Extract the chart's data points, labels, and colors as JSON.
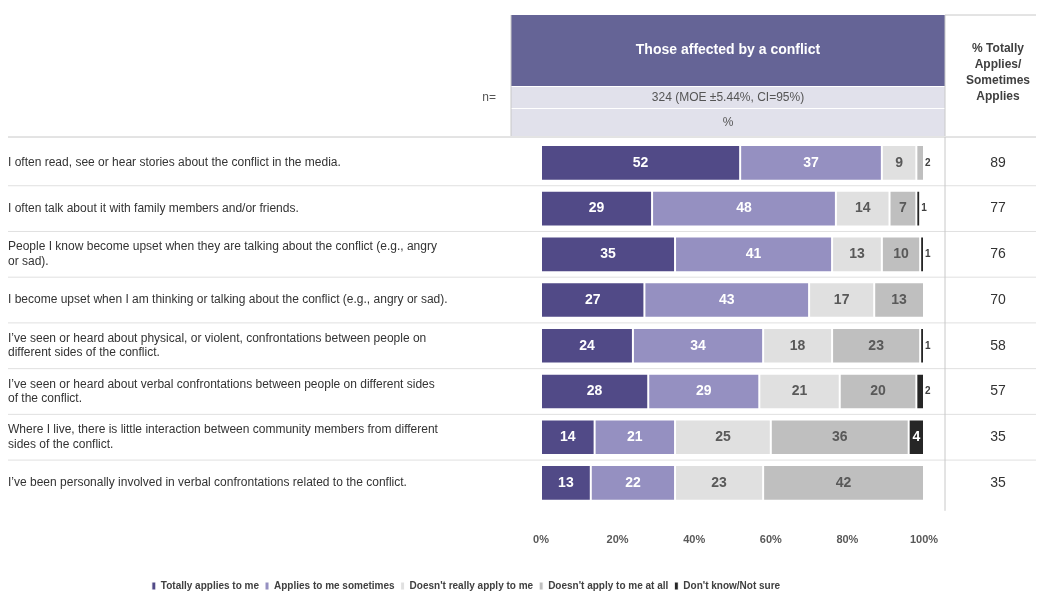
{
  "chart_data": {
    "type": "bar",
    "orientation": "horizontal",
    "stacked": true,
    "title": "Those affected by a conflict",
    "subtitle": "324 (MOE ±5.44%, CI=95%)",
    "categories": [
      "I often read, see or hear stories about the conflict in the media.",
      "I often talk about it with family members and/or friends.",
      "People I know become upset when they are talking about the conflict (e.g., angry or sad).",
      "I become upset when I am thinking or talking about the conflict (e.g., angry or sad).",
      "I’ve seen or heard about physical, or violent, confrontations between people on different sides of the conflict.",
      "I’ve seen or heard about verbal confrontations between people on different sides of the conflict.",
      "Where I live, there is little interaction between community members from different sides of the conflict.",
      "I’ve been personally involved in verbal confrontations related to the conflict."
    ],
    "series": [
      {
        "name": "Totally applies to me",
        "color": "#514a87",
        "values": [
          52,
          29,
          35,
          27,
          24,
          28,
          14,
          13
        ]
      },
      {
        "name": "Applies to me sometimes",
        "color": "#9590c1",
        "values": [
          37,
          48,
          41,
          43,
          34,
          29,
          21,
          22
        ]
      },
      {
        "name": "Doesn't really apply to me",
        "color": "#e0e0e0",
        "values": [
          9,
          14,
          13,
          17,
          18,
          21,
          25,
          23
        ]
      },
      {
        "name": "Doesn't apply to me at all",
        "color": "#bfbfbf",
        "values": [
          2,
          7,
          10,
          13,
          23,
          20,
          36,
          42
        ]
      },
      {
        "name": "Don't know/Not sure",
        "color": "#262626",
        "values": [
          null,
          1,
          1,
          null,
          1,
          2,
          4,
          null
        ]
      }
    ],
    "xlim": [
      0,
      100
    ],
    "xticks": [
      {
        "value": 0,
        "label": "0%"
      },
      {
        "value": 20,
        "label": "20%"
      },
      {
        "value": 40,
        "label": "40%"
      },
      {
        "value": 60,
        "label": "60%"
      },
      {
        "value": 80,
        "label": "80%"
      },
      {
        "value": 100,
        "label": "100%"
      }
    ],
    "data_labels": true,
    "grid": false,
    "legend": "bottom",
    "annotations": [
      "n=",
      "%",
      "% Totally Applies/ Sometimes Applies",
      "89",
      "77",
      "76",
      "70",
      "58",
      "57",
      "35",
      "35"
    ]
  }
}
